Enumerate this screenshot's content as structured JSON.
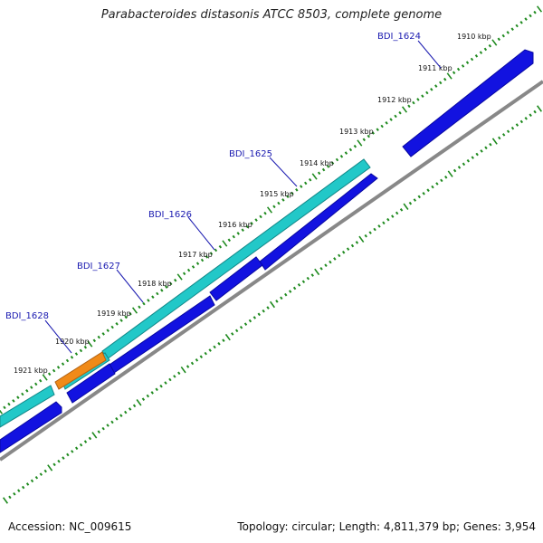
{
  "title": "Parabacteroides distasonis ATCC 8503, complete genome",
  "accession_text": "Accession: NC_009615",
  "meta_text": "Topology: circular; Length: 4,811,379 bp; Genes: 3,954",
  "colors": {
    "cds_forward": "#1212e0",
    "cds_highlight": "#22c8c8",
    "rna_feature": "#f08a18",
    "backbone": "#888888",
    "ticks": "#1e8a1e",
    "label": "#1a1ab0"
  },
  "ticks": [
    {
      "kbp": 1910,
      "label": "1910 kbp"
    },
    {
      "kbp": 1911,
      "label": "1911 kbp"
    },
    {
      "kbp": 1912,
      "label": "1912 kbp"
    },
    {
      "kbp": 1913,
      "label": "1913 kbp"
    },
    {
      "kbp": 1914,
      "label": "1914 kbp"
    },
    {
      "kbp": 1915,
      "label": "1915 kbp"
    },
    {
      "kbp": 1916,
      "label": "1916 kbp"
    },
    {
      "kbp": 1917,
      "label": "1917 kbp"
    },
    {
      "kbp": 1918,
      "label": "1918 kbp"
    },
    {
      "kbp": 1919,
      "label": "1919 kbp"
    },
    {
      "kbp": 1920,
      "label": "1920 kbp"
    },
    {
      "kbp": 1921,
      "label": "1921 kbp"
    }
  ],
  "genes": [
    {
      "name": "BDI_1624"
    },
    {
      "name": "BDI_1625"
    },
    {
      "name": "BDI_1626"
    },
    {
      "name": "BDI_1627"
    },
    {
      "name": "BDI_1628"
    }
  ]
}
